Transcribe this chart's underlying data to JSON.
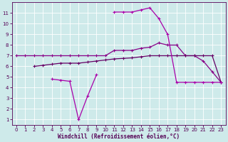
{
  "xlabel": "Windchill (Refroidissement éolien,°C)",
  "bg_color": "#ceeaea",
  "grid_color": "#ffffff",
  "purple": "#990099",
  "ylim": [
    0.5,
    12.0
  ],
  "xlim": [
    -0.5,
    23.5
  ],
  "yticks": [
    1,
    2,
    3,
    4,
    5,
    6,
    7,
    8,
    9,
    10,
    11
  ],
  "xticks": [
    0,
    1,
    2,
    3,
    4,
    5,
    6,
    7,
    8,
    9,
    10,
    11,
    12,
    13,
    14,
    15,
    16,
    17,
    18,
    19,
    20,
    21,
    22,
    23
  ],
  "x": [
    0,
    1,
    2,
    3,
    4,
    5,
    6,
    7,
    8,
    9,
    10,
    11,
    12,
    13,
    14,
    15,
    16,
    17,
    18,
    19,
    20,
    21,
    22,
    23
  ],
  "line1": [
    7,
    7,
    7,
    7,
    7,
    7,
    7,
    7,
    7,
    7,
    7,
    7.5,
    7.5,
    7.5,
    7.7,
    7.8,
    8.2,
    8.0,
    8.0,
    7.0,
    7.0,
    6.5,
    5.5,
    4.5
  ],
  "line2": [
    null,
    null,
    6.0,
    6.1,
    6.2,
    6.3,
    6.3,
    6.3,
    6.4,
    6.5,
    6.6,
    6.7,
    6.75,
    6.8,
    6.9,
    7.0,
    7.0,
    7.0,
    7.0,
    7.0,
    7.0,
    7.0,
    7.0,
    4.5
  ],
  "line3": [
    null,
    null,
    null,
    null,
    4.8,
    4.7,
    4.6,
    1.0,
    3.2,
    5.2,
    null,
    11.1,
    11.1,
    11.1,
    11.3,
    11.5,
    10.5,
    9.0,
    4.5,
    4.5,
    4.5,
    4.5,
    4.5,
    4.5
  ]
}
